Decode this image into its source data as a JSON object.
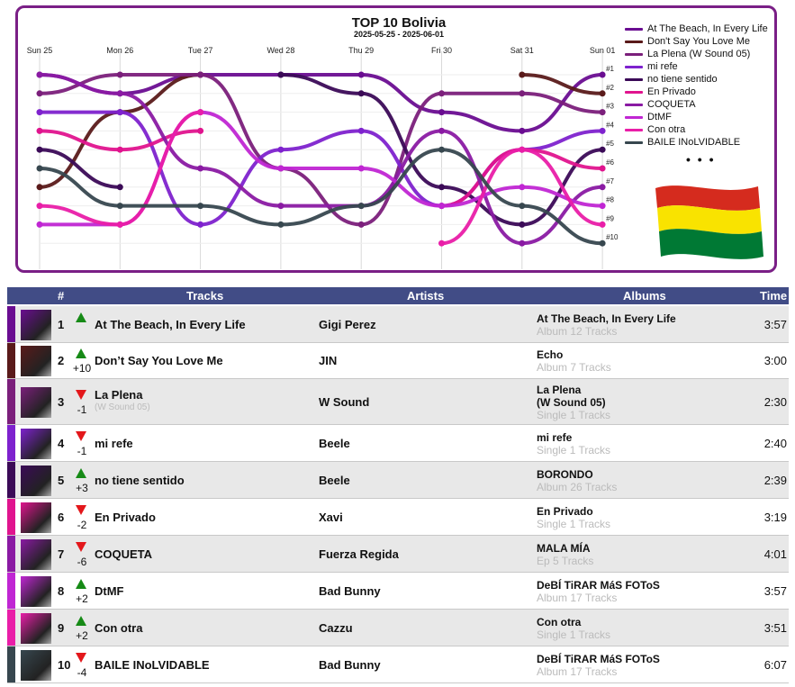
{
  "chart": {
    "title": "TOP 10 Bolivia",
    "subtitle": "2025-05-25 - 2025-06-01",
    "days": [
      "Sun 25",
      "Mon 26",
      "Tue 27",
      "Wed 28",
      "Thu 29",
      "Fri 30",
      "Sat 31",
      "Sun 01"
    ],
    "rank_labels": [
      "#1",
      "#2",
      "#3",
      "#4",
      "#5",
      "#6",
      "#7",
      "#8",
      "#9",
      "#10"
    ],
    "legend_more": "• • •"
  },
  "chart_data": {
    "type": "line",
    "title": "TOP 10 Bolivia",
    "subtitle": "2025-05-25 - 2025-06-01",
    "x": [
      "Sun 25",
      "Mon 26",
      "Tue 27",
      "Wed 28",
      "Thu 29",
      "Fri 30",
      "Sat 31",
      "Sun 01"
    ],
    "y_inverted": true,
    "ylim": [
      1,
      10
    ],
    "series": [
      {
        "name": "At The Beach, In Every Life",
        "color": "#6a0d91",
        "values": [
          1,
          2,
          1,
          1,
          1,
          3,
          4,
          1
        ]
      },
      {
        "name": "Don't Say You Love Me",
        "color": "#5a1a1a",
        "values": [
          7,
          3,
          1,
          null,
          null,
          null,
          1,
          2
        ]
      },
      {
        "name": "La Plena (W Sound 05)",
        "color": "#7b1f7b",
        "values": [
          2,
          1,
          1,
          6,
          9,
          2,
          2,
          3
        ]
      },
      {
        "name": "mi refe",
        "color": "#7e22ce",
        "values": [
          3,
          3,
          9,
          5,
          4,
          8,
          5,
          4
        ]
      },
      {
        "name": "no tiene sentido",
        "color": "#3b0a57",
        "values": [
          5,
          7,
          null,
          1,
          2,
          7,
          9,
          5
        ]
      },
      {
        "name": "En Privado",
        "color": "#e0148e",
        "values": [
          4,
          5,
          4,
          null,
          null,
          8,
          5,
          6
        ]
      },
      {
        "name": "COQUETA",
        "color": "#8a1aa3",
        "values": [
          1,
          2,
          6,
          8,
          8,
          4,
          10,
          7
        ]
      },
      {
        "name": "DtMF",
        "color": "#c026d3",
        "values": [
          9,
          9,
          3,
          6,
          6,
          8,
          7,
          8
        ]
      },
      {
        "name": "Con otra",
        "color": "#e91ea8",
        "values": [
          8,
          9,
          3,
          null,
          null,
          10,
          5,
          9
        ]
      },
      {
        "name": "BAILE INoLVIDABLE",
        "color": "#37474f",
        "values": [
          6,
          8,
          8,
          9,
          8,
          5,
          8,
          10
        ]
      }
    ]
  },
  "table": {
    "headers": {
      "rank": "#",
      "tracks": "Tracks",
      "artists": "Artists",
      "albums": "Albums",
      "time": "Time"
    },
    "rows": [
      {
        "rank": "1",
        "dir": "up",
        "delta": "",
        "track": "At The Beach, In Every Life",
        "track_sub": "",
        "artist": "Gigi Perez",
        "album": "At The Beach, In Every Life",
        "album_sub": "Album 12 Tracks",
        "time": "3:57",
        "color": "#6a0d91"
      },
      {
        "rank": "2",
        "dir": "up",
        "delta": "+10",
        "track": "Don’t Say You Love Me",
        "track_sub": "",
        "artist": "JIN",
        "album": "Echo",
        "album_sub": "Album 7 Tracks",
        "time": "3:00",
        "color": "#5a1a1a"
      },
      {
        "rank": "3",
        "dir": "down",
        "delta": "-1",
        "track": "La Plena",
        "track_sub": "(W Sound 05)",
        "artist": "W Sound",
        "album": "La Plena\n(W Sound 05)",
        "album_sub": "Single 1 Tracks",
        "time": "2:30",
        "color": "#7b1f7b"
      },
      {
        "rank": "4",
        "dir": "down",
        "delta": "-1",
        "track": "mi refe",
        "track_sub": "",
        "artist": "Beele",
        "album": "mi refe",
        "album_sub": "Single 1 Tracks",
        "time": "2:40",
        "color": "#7e22ce"
      },
      {
        "rank": "5",
        "dir": "up",
        "delta": "+3",
        "track": "no tiene sentido",
        "track_sub": "",
        "artist": "Beele",
        "album": "BORONDO",
        "album_sub": "Album 26 Tracks",
        "time": "2:39",
        "color": "#3b0a57"
      },
      {
        "rank": "6",
        "dir": "down",
        "delta": "-2",
        "track": "En Privado",
        "track_sub": "",
        "artist": "Xavi",
        "album": "En Privado",
        "album_sub": "Single 1 Tracks",
        "time": "3:19",
        "color": "#e0148e"
      },
      {
        "rank": "7",
        "dir": "down",
        "delta": "-6",
        "track": "COQUETA",
        "track_sub": "",
        "artist": "Fuerza Regida",
        "album": "MALA MÍA",
        "album_sub": "Ep 5 Tracks",
        "time": "4:01",
        "color": "#8a1aa3"
      },
      {
        "rank": "8",
        "dir": "up",
        "delta": "+2",
        "track": "DtMF",
        "track_sub": "",
        "artist": "Bad Bunny",
        "album": "DeBÍ TiRAR MáS FOToS",
        "album_sub": "Album 17 Tracks",
        "time": "3:57",
        "color": "#c026d3"
      },
      {
        "rank": "9",
        "dir": "up",
        "delta": "+2",
        "track": "Con otra",
        "track_sub": "",
        "artist": "Cazzu",
        "album": "Con otra",
        "album_sub": "Single 1 Tracks",
        "time": "3:51",
        "color": "#e91ea8"
      },
      {
        "rank": "10",
        "dir": "down",
        "delta": "-4",
        "track": "BAILE INoLVIDABLE",
        "track_sub": "",
        "artist": "Bad Bunny",
        "album": "DeBÍ TiRAR MáS FOToS",
        "album_sub": "Album 17 Tracks",
        "time": "6:07",
        "color": "#37474f"
      }
    ]
  }
}
